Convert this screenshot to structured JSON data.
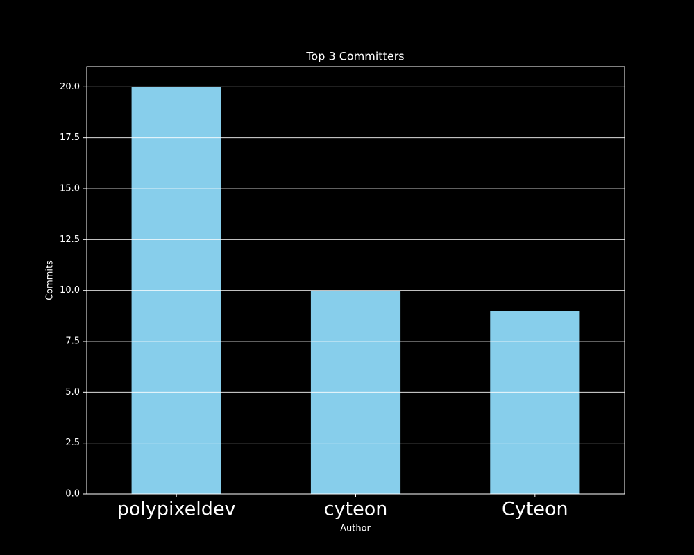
{
  "chart_data": {
    "type": "bar",
    "title": "Top 3 Committers",
    "x_label": "Author",
    "y_label": "Commits",
    "categories": [
      "polypixeldev",
      "cyteon",
      "Cyteon"
    ],
    "values": [
      20,
      10,
      9
    ],
    "color": "#87ceeb",
    "ylim": [
      0,
      21
    ],
    "yticks": [
      {
        "value": 0,
        "label": "0.0"
      },
      2.5,
      {
        "value": 5,
        "label": "5.0"
      },
      7.5,
      {
        "value": 10,
        "label": "10.0"
      },
      12.5,
      {
        "value": 15,
        "label": "15.0"
      },
      17.5,
      {
        "value": 20,
        "label": "20.0"
      }
    ],
    "grid": true
  }
}
